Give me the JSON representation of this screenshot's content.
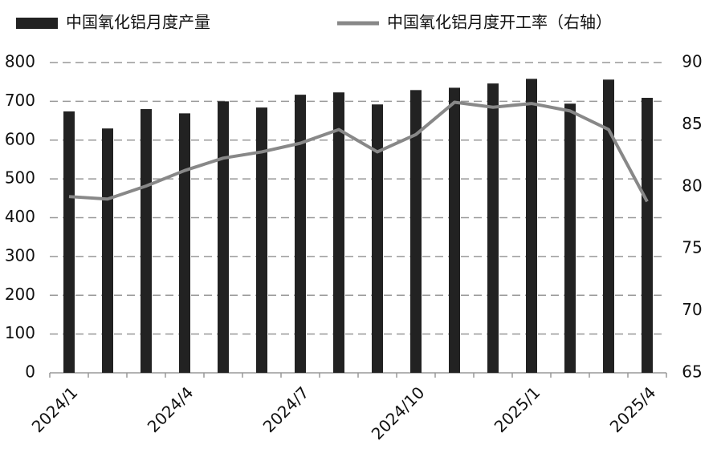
{
  "chart_data": {
    "type": "bar-line",
    "categories": [
      "2024/1",
      null,
      null,
      "2024/4",
      null,
      null,
      "2024/7",
      null,
      null,
      "2024/10",
      null,
      null,
      "2025/1",
      null,
      null,
      "2025/4"
    ],
    "series": [
      {
        "name": "中国氧化铝月度产量",
        "type": "bar",
        "color": "#222222",
        "values": [
          674,
          630,
          680,
          669,
          700,
          684,
          717,
          723,
          692,
          729,
          735,
          746,
          758,
          694,
          756,
          709
        ]
      },
      {
        "name": "中国氧化铝月度开工率（右轴）",
        "type": "line",
        "axis": "y2",
        "color": "#888888",
        "values": [
          79.2,
          79.0,
          80.05,
          81.3,
          82.3,
          82.8,
          83.5,
          84.6,
          82.8,
          84.2,
          86.8,
          86.4,
          86.7,
          86.1,
          84.6,
          78.8
        ]
      }
    ],
    "ylim": [
      0,
      800
    ],
    "yticks": [
      0,
      100,
      200,
      300,
      400,
      500,
      600,
      700,
      800
    ],
    "y2lim": [
      65,
      90
    ],
    "y2ticks": [
      65,
      70,
      75,
      80,
      85,
      90
    ],
    "grid": true
  }
}
